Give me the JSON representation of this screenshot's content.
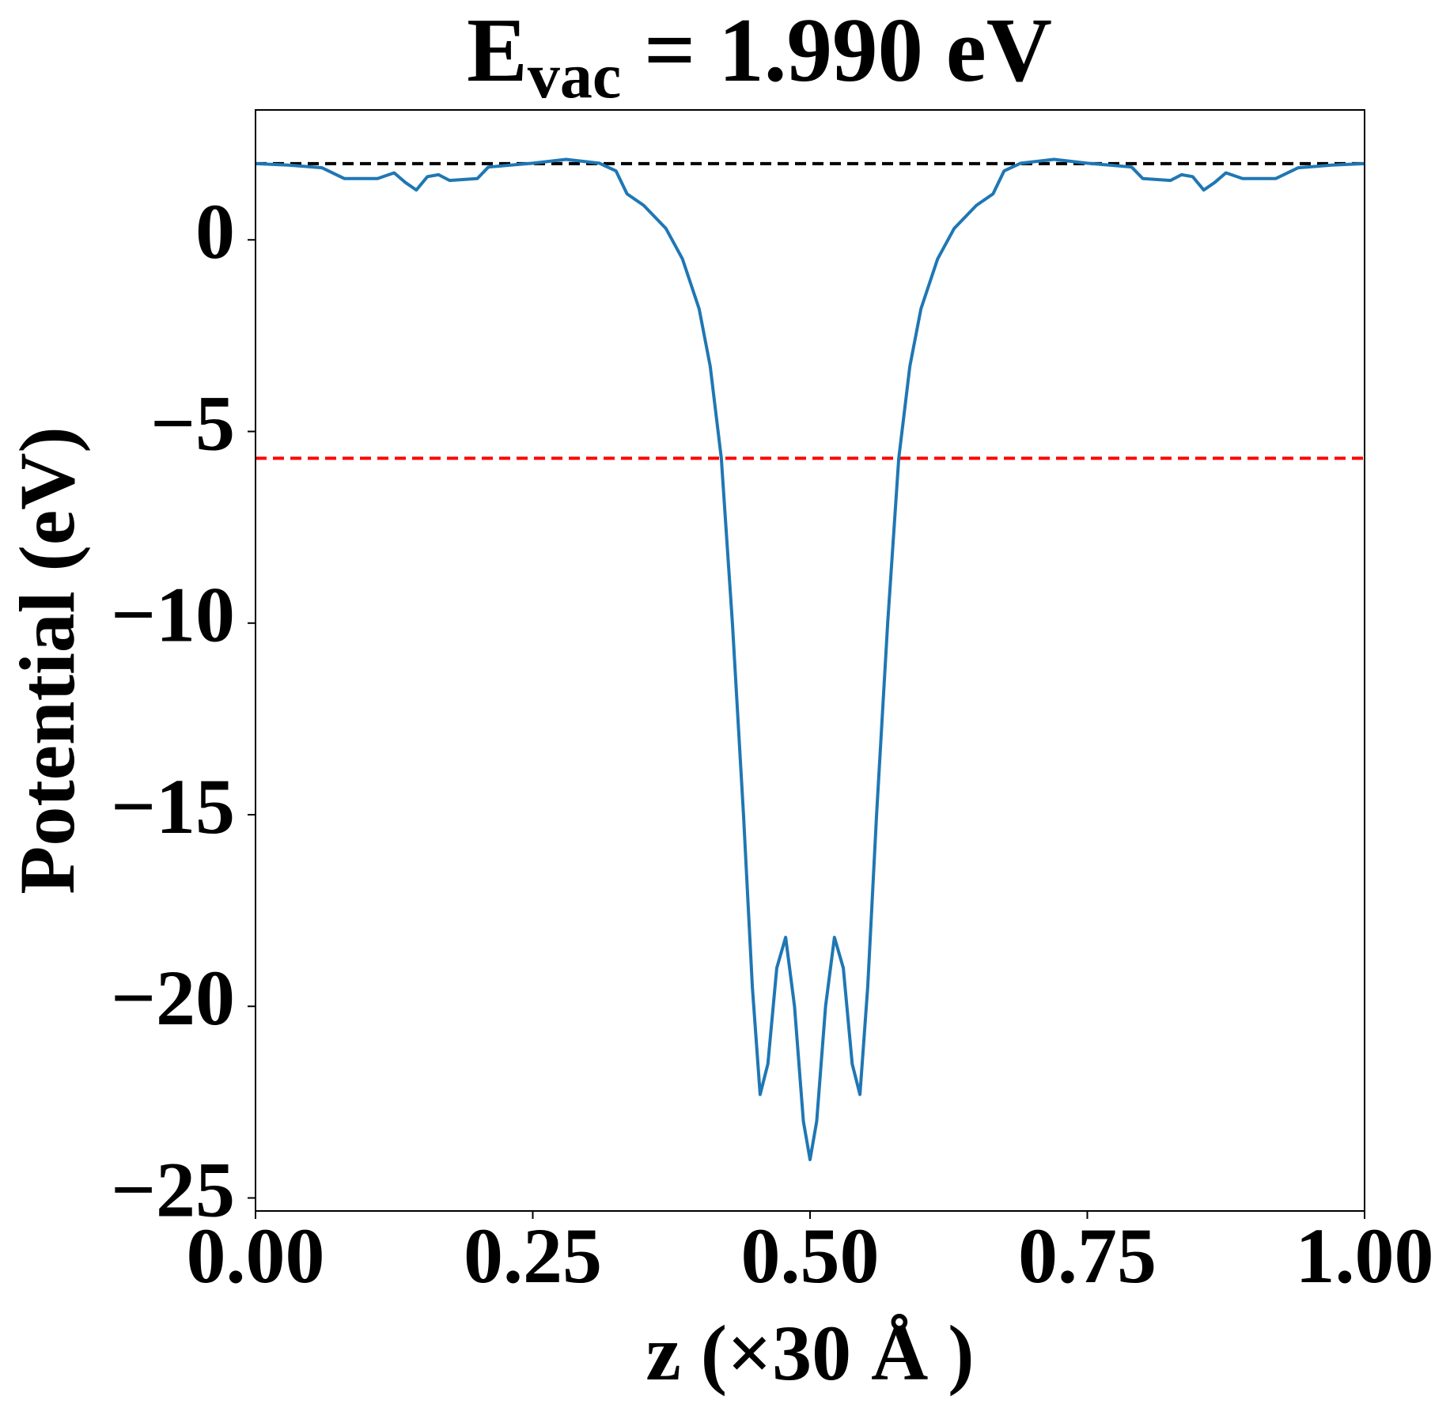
{
  "chart_data": {
    "type": "line",
    "title": "E",
    "title_subscript": "vac",
    "title_rest": " = 1.990 eV",
    "xlabel": "z (×30 Å )",
    "ylabel": "Potential (eV)",
    "xlim": [
      0,
      1
    ],
    "ylim": [
      -25.34,
      3.39
    ],
    "xticks": [
      {
        "value": 0,
        "label": "0.00"
      },
      {
        "value": 0.25,
        "label": "0.25"
      },
      {
        "value": 0.5,
        "label": "0.50"
      },
      {
        "value": 0.75,
        "label": "0.75"
      },
      {
        "value": 1,
        "label": "1.00"
      }
    ],
    "yticks": [
      {
        "value": -25,
        "label": "−25"
      },
      {
        "value": -20,
        "label": "−20"
      },
      {
        "value": -15,
        "label": "−15"
      },
      {
        "value": -10,
        "label": "−10"
      },
      {
        "value": -5,
        "label": "−5"
      },
      0
    ],
    "hlines": [
      {
        "y": 1.99,
        "color": "#000000"
      },
      {
        "y": -5.7,
        "color": "#ff0000"
      }
    ],
    "x": [
      0,
      0.03,
      0.06,
      0.08,
      0.11,
      0.125,
      0.135,
      0.145,
      0.155,
      0.165,
      0.175,
      0.2,
      0.21,
      0.25,
      0.28,
      0.31,
      0.325,
      0.335,
      0.35,
      0.37,
      0.385,
      0.4,
      0.41,
      0.42,
      0.43,
      0.44,
      0.448,
      0.455,
      0.462,
      0.47,
      0.478,
      0.486,
      0.494,
      0.5,
      0.506,
      0.514,
      0.522,
      0.53,
      0.538,
      0.545,
      0.552,
      0.56,
      0.57,
      0.58,
      0.59,
      0.6,
      0.615,
      0.63,
      0.65,
      0.665,
      0.675,
      0.69,
      0.72,
      0.75,
      0.79,
      0.8,
      0.825,
      0.835,
      0.845,
      0.855,
      0.865,
      0.875,
      0.89,
      0.92,
      0.94,
      0.97,
      1
    ],
    "series": [
      {
        "color": "#1f77b4",
        "values": [
          1.99,
          1.95,
          1.88,
          1.6,
          1.6,
          1.75,
          1.5,
          1.3,
          1.65,
          1.7,
          1.55,
          1.6,
          1.9,
          2.0,
          2.1,
          2.0,
          1.8,
          1.2,
          0.9,
          0.3,
          -0.5,
          -1.8,
          -3.3,
          -5.7,
          -10,
          -15,
          -19.5,
          -22.3,
          -21.5,
          -19,
          -18.2,
          -20,
          -23,
          -24.0,
          -23,
          -20,
          -18.2,
          -19,
          -21.5,
          -22.3,
          -19.5,
          -15,
          -10,
          -5.7,
          -3.3,
          -1.8,
          -0.5,
          0.3,
          0.9,
          1.2,
          1.8,
          2.0,
          2.1,
          2.0,
          1.9,
          1.6,
          1.55,
          1.7,
          1.65,
          1.3,
          1.5,
          1.75,
          1.6,
          1.6,
          1.88,
          1.95,
          1.99
        ]
      }
    ]
  }
}
